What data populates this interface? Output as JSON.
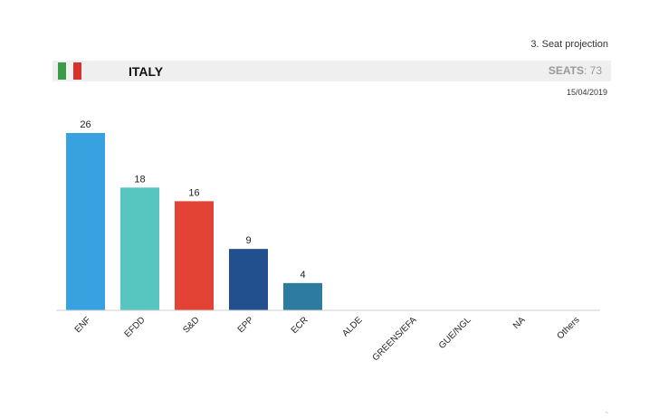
{
  "header": {
    "section_label": "3. Seat projection",
    "country": "ITALY",
    "seats_label": "SEATS",
    "seats_value": "73",
    "date": "15/04/2019",
    "flag_colors": [
      "#3a9c47",
      "#f3f3f3",
      "#d8312f"
    ]
  },
  "chart_data": {
    "type": "bar",
    "categories": [
      "ENF",
      "EFDD",
      "S&D",
      "EPP",
      "ECR",
      "ALDE",
      "GREENS/EFA",
      "GUE/NGL",
      "NA",
      "Others"
    ],
    "values": [
      26,
      18,
      16,
      9,
      4,
      0,
      0,
      0,
      0,
      0
    ],
    "colors": [
      "#38a2e0",
      "#58c6c0",
      "#e34335",
      "#22508f",
      "#2d7b9e",
      "#999999",
      "#999999",
      "#999999",
      "#999999",
      "#999999"
    ],
    "data_labels": [
      "26",
      "18",
      "16",
      "9",
      "4",
      "",
      "",
      "",
      "",
      ""
    ],
    "ylim": [
      0,
      26
    ],
    "grid": false,
    "legend": "none"
  }
}
